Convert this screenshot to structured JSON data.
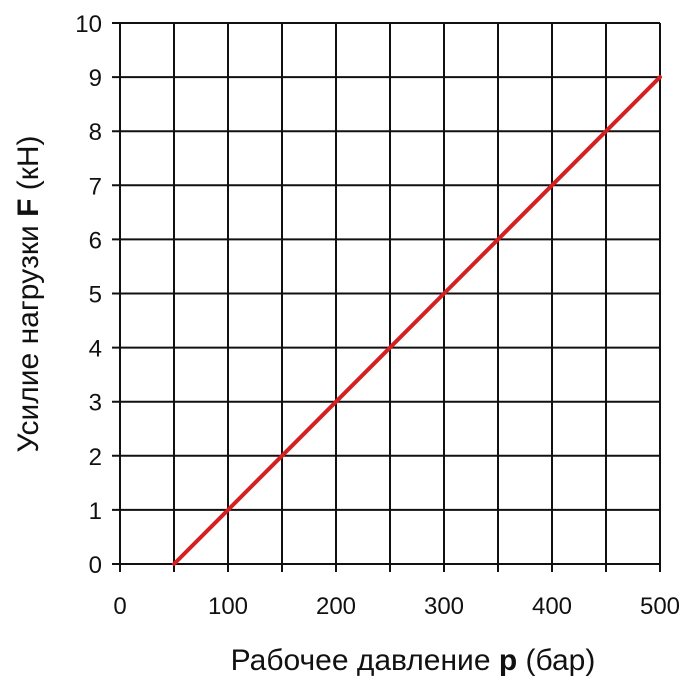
{
  "chart_data": {
    "type": "line",
    "x": [
      50,
      100,
      150,
      200,
      250,
      300,
      350,
      400,
      450,
      500
    ],
    "series": [
      {
        "values": [
          0,
          1,
          2,
          3,
          4,
          5,
          6,
          7,
          8,
          9
        ],
        "color": "#d42020"
      }
    ],
    "xlim": [
      0,
      500
    ],
    "ylim": [
      0,
      10
    ],
    "xticks": [
      "0",
      "100",
      "200",
      "300",
      "400",
      "500"
    ],
    "yticks": [
      "0",
      "1",
      "2",
      "3",
      "4",
      "5",
      "6",
      "7",
      "8",
      "9",
      "10"
    ],
    "grid": true,
    "xlabel": {
      "prefix": "Рабочее давление ",
      "symbol": "p",
      "suffix": " (бар)"
    },
    "ylabel": {
      "prefix": "Усилие нагрузки ",
      "symbol": "F",
      "suffix": " (кН)"
    }
  }
}
